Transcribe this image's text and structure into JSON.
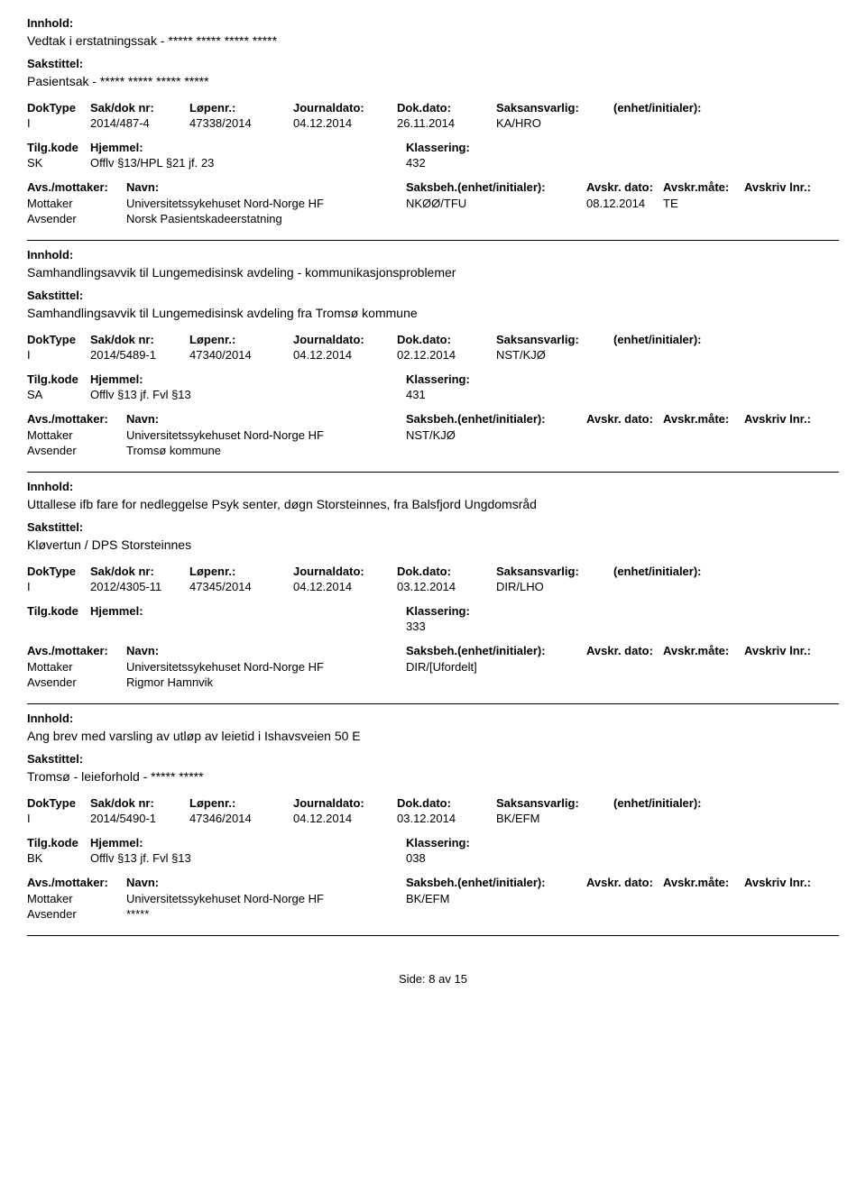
{
  "labels": {
    "innhold": "Innhold:",
    "sakstittel": "Sakstittel:",
    "doktype": "DokType",
    "sakdoknr": "Sak/dok nr:",
    "lopenr": "Løpenr.:",
    "journaldato": "Journaldato:",
    "dokdato": "Dok.dato:",
    "saksansvarlig": "Saksansvarlig:",
    "enhet": "(enhet/initialer):",
    "tilgkode": "Tilg.kode",
    "hjemmel": "Hjemmel:",
    "klassering": "Klassering:",
    "avsmottaker": "Avs./mottaker:",
    "navn": "Navn:",
    "saksbeh": "Saksbeh.(enhet/initialer):",
    "avskrdato": "Avskr. dato:",
    "avskrmate": "Avskr.måte:",
    "avskrivlnr": "Avskriv lnr.:",
    "mottaker": "Mottaker",
    "avsender": "Avsender"
  },
  "records": [
    {
      "innhold": "Vedtak i erstatningssak - ***** ***** ***** *****",
      "sakstittel": "Pasientsak - ***** ***** ***** *****",
      "doktype": "I",
      "sakdoknr": "2014/487-4",
      "lopenr": "47338/2014",
      "journaldato": "04.12.2014",
      "dokdato": "26.11.2014",
      "saksansvarlig": "KA/HRO",
      "tilgkode": "SK",
      "hjemmel": "Offlv §13/HPL §21 jf. 23",
      "klassering": "432",
      "parties": [
        {
          "role": "Mottaker",
          "navn": "Universitetssykehuset Nord-Norge HF",
          "saksbeh": "NKØØ/TFU",
          "avskrdato": "08.12.2014",
          "avskrmate": "TE",
          "avskrivlnr": ""
        },
        {
          "role": "Avsender",
          "navn": "Norsk Pasientskadeerstatning",
          "saksbeh": "",
          "avskrdato": "",
          "avskrmate": "",
          "avskrivlnr": ""
        }
      ]
    },
    {
      "innhold": "Samhandlingsavvik til Lungemedisinsk avdeling - kommunikasjonsproblemer",
      "sakstittel": "Samhandlingsavvik til Lungemedisinsk avdeling fra Tromsø kommune",
      "doktype": "I",
      "sakdoknr": "2014/5489-1",
      "lopenr": "47340/2014",
      "journaldato": "04.12.2014",
      "dokdato": "02.12.2014",
      "saksansvarlig": "NST/KJØ",
      "tilgkode": "SA",
      "hjemmel": "Offlv §13 jf. Fvl §13",
      "klassering": "431",
      "parties": [
        {
          "role": "Mottaker",
          "navn": "Universitetssykehuset Nord-Norge HF",
          "saksbeh": "NST/KJØ",
          "avskrdato": "",
          "avskrmate": "",
          "avskrivlnr": ""
        },
        {
          "role": "Avsender",
          "navn": "Tromsø kommune",
          "saksbeh": "",
          "avskrdato": "",
          "avskrmate": "",
          "avskrivlnr": ""
        }
      ]
    },
    {
      "innhold": "Uttallese  ifb fare for nedleggelse Psyk senter, døgn Storsteinnes, fra Balsfjord Ungdomsråd",
      "sakstittel": "Kløvertun / DPS Storsteinnes",
      "doktype": "I",
      "sakdoknr": "2012/4305-11",
      "lopenr": "47345/2014",
      "journaldato": "04.12.2014",
      "dokdato": "03.12.2014",
      "saksansvarlig": "DIR/LHO",
      "tilgkode": "",
      "hjemmel": "",
      "klassering": "333",
      "parties": [
        {
          "role": "Mottaker",
          "navn": "Universitetssykehuset Nord-Norge HF",
          "saksbeh": "DIR/[Ufordelt]",
          "avskrdato": "",
          "avskrmate": "",
          "avskrivlnr": ""
        },
        {
          "role": "Avsender",
          "navn": "Rigmor Hamnvik",
          "saksbeh": "",
          "avskrdato": "",
          "avskrmate": "",
          "avskrivlnr": ""
        }
      ]
    },
    {
      "innhold": "Ang brev med varsling av utløp av leietid i Ishavsveien 50 E",
      "sakstittel": "Tromsø - leieforhold - ***** *****",
      "doktype": "I",
      "sakdoknr": "2014/5490-1",
      "lopenr": "47346/2014",
      "journaldato": "04.12.2014",
      "dokdato": "03.12.2014",
      "saksansvarlig": "BK/EFM",
      "tilgkode": "BK",
      "hjemmel": "Offlv §13 jf. Fvl §13",
      "klassering": "038",
      "parties": [
        {
          "role": "Mottaker",
          "navn": "Universitetssykehuset Nord-Norge HF",
          "saksbeh": "BK/EFM",
          "avskrdato": "",
          "avskrmate": "",
          "avskrivlnr": ""
        },
        {
          "role": "Avsender",
          "navn": "*****",
          "saksbeh": "",
          "avskrdato": "",
          "avskrmate": "",
          "avskrivlnr": ""
        }
      ]
    }
  ],
  "footer": {
    "prefix": "Side:",
    "page": "8",
    "sep": "av",
    "total": "15"
  }
}
